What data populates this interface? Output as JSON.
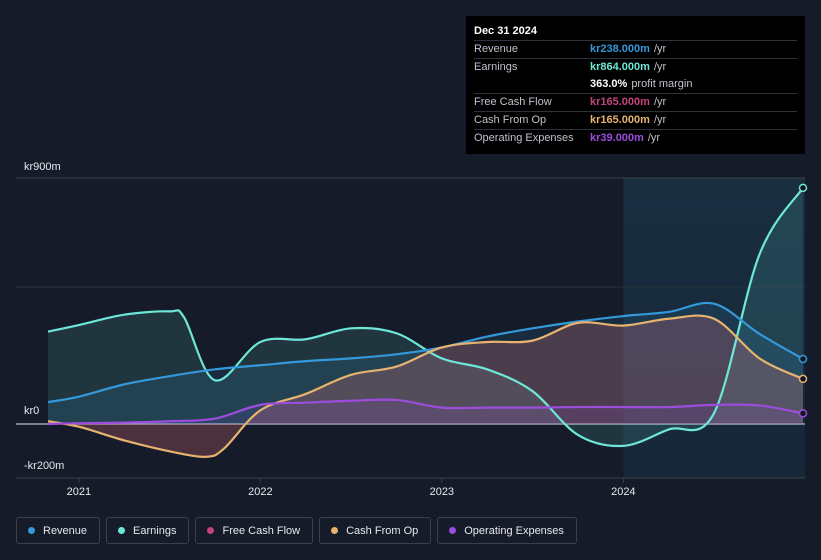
{
  "chart_data": {
    "type": "area",
    "x_ticks": [
      "2021",
      "2022",
      "2023",
      "2024"
    ],
    "y_labels": [
      "kr900m",
      "kr0",
      "-kr200m"
    ],
    "ylim": [
      -200,
      900
    ],
    "highlight_start": 2024.0,
    "series": [
      {
        "name": "Earnings",
        "color": "#6ee7d8",
        "points": [
          [
            2020.83,
            338
          ],
          [
            2021.0,
            362
          ],
          [
            2021.25,
            400
          ],
          [
            2021.5,
            412
          ],
          [
            2021.58,
            390
          ],
          [
            2021.75,
            160
          ],
          [
            2022.0,
            300
          ],
          [
            2022.25,
            310
          ],
          [
            2022.5,
            350
          ],
          [
            2022.75,
            332
          ],
          [
            2023.0,
            240
          ],
          [
            2023.25,
            200
          ],
          [
            2023.5,
            120
          ],
          [
            2023.75,
            -40
          ],
          [
            2024.0,
            -80
          ],
          [
            2024.25,
            -20
          ],
          [
            2024.5,
            40
          ],
          [
            2024.75,
            620
          ],
          [
            2024.99,
            864
          ]
        ]
      },
      {
        "name": "Revenue",
        "color": "#3498db",
        "points": [
          [
            2020.83,
            80
          ],
          [
            2021.0,
            100
          ],
          [
            2021.25,
            145
          ],
          [
            2021.5,
            175
          ],
          [
            2021.75,
            200
          ],
          [
            2022.0,
            215
          ],
          [
            2022.25,
            230
          ],
          [
            2022.5,
            240
          ],
          [
            2022.75,
            255
          ],
          [
            2023.0,
            280
          ],
          [
            2023.25,
            320
          ],
          [
            2023.5,
            350
          ],
          [
            2023.75,
            375
          ],
          [
            2024.0,
            395
          ],
          [
            2024.25,
            410
          ],
          [
            2024.5,
            440
          ],
          [
            2024.75,
            330
          ],
          [
            2024.99,
            238
          ]
        ]
      },
      {
        "name": "Cash From Op",
        "color": "#e8b36f",
        "points": [
          [
            2020.83,
            10
          ],
          [
            2021.0,
            -10
          ],
          [
            2021.25,
            -60
          ],
          [
            2021.5,
            -100
          ],
          [
            2021.7,
            -120
          ],
          [
            2021.8,
            -90
          ],
          [
            2022.0,
            50
          ],
          [
            2022.25,
            110
          ],
          [
            2022.5,
            180
          ],
          [
            2022.75,
            210
          ],
          [
            2023.0,
            280
          ],
          [
            2023.25,
            300
          ],
          [
            2023.5,
            305
          ],
          [
            2023.75,
            370
          ],
          [
            2024.0,
            360
          ],
          [
            2024.25,
            385
          ],
          [
            2024.5,
            385
          ],
          [
            2024.75,
            240
          ],
          [
            2024.99,
            165
          ]
        ]
      },
      {
        "name": "Free Cash Flow",
        "color": "#c2457a",
        "points": [
          [
            2020.83,
            10
          ],
          [
            2021.0,
            -10
          ],
          [
            2021.25,
            -60
          ],
          [
            2021.5,
            -100
          ],
          [
            2021.7,
            -120
          ],
          [
            2021.8,
            -90
          ],
          [
            2022.0,
            50
          ],
          [
            2022.25,
            110
          ],
          [
            2022.5,
            180
          ],
          [
            2022.75,
            210
          ],
          [
            2023.0,
            280
          ],
          [
            2023.25,
            300
          ],
          [
            2023.5,
            305
          ],
          [
            2023.75,
            370
          ],
          [
            2024.0,
            360
          ],
          [
            2024.25,
            385
          ],
          [
            2024.5,
            385
          ],
          [
            2024.75,
            240
          ],
          [
            2024.99,
            165
          ]
        ]
      },
      {
        "name": "Operating Expenses",
        "color": "#9c4dde",
        "points": [
          [
            2020.83,
            0
          ],
          [
            2021.0,
            3
          ],
          [
            2021.25,
            5
          ],
          [
            2021.5,
            10
          ],
          [
            2021.75,
            20
          ],
          [
            2022.0,
            70
          ],
          [
            2022.25,
            78
          ],
          [
            2022.5,
            85
          ],
          [
            2022.75,
            88
          ],
          [
            2023.0,
            60
          ],
          [
            2023.25,
            60
          ],
          [
            2023.5,
            60
          ],
          [
            2023.75,
            62
          ],
          [
            2024.0,
            62
          ],
          [
            2024.25,
            62
          ],
          [
            2024.5,
            70
          ],
          [
            2024.75,
            68
          ],
          [
            2024.99,
            39
          ]
        ]
      }
    ]
  },
  "tooltip": {
    "date": "Dec 31 2024",
    "rows": [
      {
        "label": "Revenue",
        "value": "kr238.000m",
        "unit": "/yr",
        "color": "#3498db"
      },
      {
        "label": "Earnings",
        "value": "kr864.000m",
        "unit": "/yr",
        "color": "#6ee7d8"
      },
      {
        "label": "",
        "value": "363.0%",
        "unit": "profit margin",
        "color": "#ffffff"
      },
      {
        "label": "Free Cash Flow",
        "value": "kr165.000m",
        "unit": "/yr",
        "color": "#c2457a"
      },
      {
        "label": "Cash From Op",
        "value": "kr165.000m",
        "unit": "/yr",
        "color": "#e8b36f"
      },
      {
        "label": "Operating Expenses",
        "value": "kr39.000m",
        "unit": "/yr",
        "color": "#9c4dde"
      }
    ]
  },
  "legend": [
    {
      "label": "Revenue",
      "color": "#3498db"
    },
    {
      "label": "Earnings",
      "color": "#6ee7d8"
    },
    {
      "label": "Free Cash Flow",
      "color": "#c2457a"
    },
    {
      "label": "Cash From Op",
      "color": "#e8b36f"
    },
    {
      "label": "Operating Expenses",
      "color": "#9c4dde"
    }
  ]
}
